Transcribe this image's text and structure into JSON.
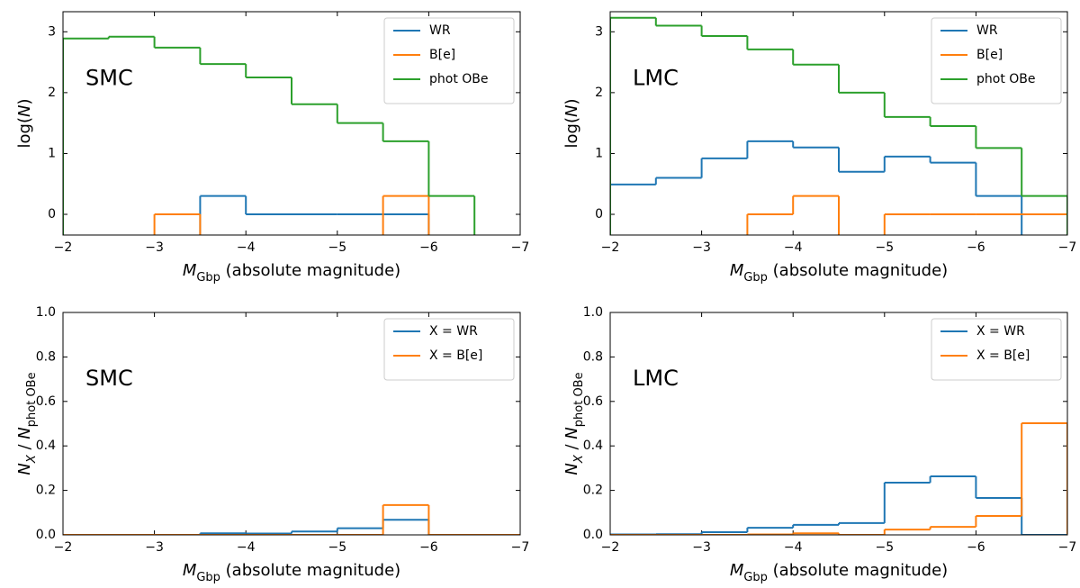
{
  "chart_data": [
    {
      "type": "histogram",
      "annotation": "SMC",
      "xlabel": [
        {
          "text": "M",
          "italic": true
        },
        {
          "text": "Gbp",
          "sub": true
        },
        {
          "text": " (absolute magnitude)"
        }
      ],
      "ylabel": [
        {
          "text": "log("
        },
        {
          "text": "N",
          "italic": true
        },
        {
          "text": ")"
        }
      ],
      "bins": [
        -2,
        -2.5,
        -3,
        -3.5,
        -4,
        -4.5,
        -5,
        -5.5,
        -6,
        -6.5,
        -7
      ],
      "series": [
        {
          "name": "WR",
          "color": "#1f77b4",
          "values": [
            null,
            null,
            null,
            0.301,
            0,
            0,
            0,
            0,
            null,
            null
          ]
        },
        {
          "name": "B[e]",
          "color": "#ff7f0e",
          "values": [
            null,
            null,
            0,
            null,
            null,
            null,
            null,
            0.301,
            null,
            null
          ]
        },
        {
          "name": "phot OBe",
          "color": "#2ca02c",
          "values": [
            2.89,
            2.92,
            2.74,
            2.47,
            2.25,
            1.81,
            1.5,
            1.2,
            0.301,
            null
          ]
        }
      ],
      "xlim": [
        -2,
        -7
      ],
      "ylim": [
        -0.34,
        3.33
      ],
      "xticks": [
        {
          "value": -2,
          "label": "−2"
        },
        {
          "value": -3,
          "label": "−3"
        },
        {
          "value": -4,
          "label": "−4"
        },
        {
          "value": -5,
          "label": "−5"
        },
        {
          "value": -6,
          "label": "−6"
        },
        {
          "value": -7,
          "label": "−7"
        }
      ],
      "yticks": [
        0,
        1,
        2,
        3
      ],
      "legend": "upper right"
    },
    {
      "type": "histogram",
      "annotation": "LMC",
      "xlabel": [
        {
          "text": "M",
          "italic": true
        },
        {
          "text": "Gbp",
          "sub": true
        },
        {
          "text": " (absolute magnitude)"
        }
      ],
      "ylabel": [
        {
          "text": "log("
        },
        {
          "text": "N",
          "italic": true
        },
        {
          "text": ")"
        }
      ],
      "bins": [
        -2,
        -2.5,
        -3,
        -3.5,
        -4,
        -4.5,
        -5,
        -5.5,
        -6,
        -6.5,
        -7
      ],
      "series": [
        {
          "name": "WR",
          "color": "#1f77b4",
          "values": [
            0.49,
            0.6,
            0.92,
            1.2,
            1.1,
            0.7,
            0.95,
            0.85,
            0.301,
            null
          ]
        },
        {
          "name": "B[e]",
          "color": "#ff7f0e",
          "values": [
            null,
            null,
            null,
            0,
            0.301,
            null,
            0,
            0,
            0,
            0
          ]
        },
        {
          "name": "phot OBe",
          "color": "#2ca02c",
          "values": [
            3.23,
            3.1,
            2.93,
            2.71,
            2.46,
            2.0,
            1.6,
            1.45,
            1.09,
            0.301
          ]
        }
      ],
      "xlim": [
        -2,
        -7
      ],
      "ylim": [
        -0.34,
        3.33
      ],
      "xticks": [
        {
          "value": -2,
          "label": "−2"
        },
        {
          "value": -3,
          "label": "−3"
        },
        {
          "value": -4,
          "label": "−4"
        },
        {
          "value": -5,
          "label": "−5"
        },
        {
          "value": -6,
          "label": "−6"
        },
        {
          "value": -7,
          "label": "−7"
        }
      ],
      "yticks": [
        0,
        1,
        2,
        3
      ],
      "legend": "upper right"
    },
    {
      "type": "histogram",
      "annotation": "SMC",
      "xlabel": [
        {
          "text": "M",
          "italic": true
        },
        {
          "text": "Gbp",
          "sub": true
        },
        {
          "text": " (absolute magnitude)"
        }
      ],
      "ylabel": [
        {
          "text": "N",
          "italic": true
        },
        {
          "text": "X",
          "italic": true,
          "sub": true
        },
        {
          "text": " / "
        },
        {
          "text": "N",
          "italic": true
        },
        {
          "text": "phot OBe",
          "sub": true
        }
      ],
      "bins": [
        -2,
        -2.5,
        -3,
        -3.5,
        -4,
        -4.5,
        -5,
        -5.5,
        -6,
        -6.5,
        -7
      ],
      "series": [
        {
          "name": "X = WR",
          "color": "#1f77b4",
          "values": [
            0,
            0,
            0,
            0.007,
            0.006,
            0.015,
            0.03,
            0.068,
            0,
            0
          ]
        },
        {
          "name": "X = B[e]",
          "color": "#ff7f0e",
          "values": [
            0,
            0,
            0,
            0,
            0,
            0,
            0,
            0.134,
            0,
            0
          ]
        }
      ],
      "xlim": [
        -2,
        -7
      ],
      "ylim": [
        0,
        1
      ],
      "xticks": [
        {
          "value": -2,
          "label": "−2"
        },
        {
          "value": -3,
          "label": "−3"
        },
        {
          "value": -4,
          "label": "−4"
        },
        {
          "value": -5,
          "label": "−5"
        },
        {
          "value": -6,
          "label": "−6"
        },
        {
          "value": -7,
          "label": "−7"
        }
      ],
      "yticks": [
        {
          "value": 0,
          "label": "0.0"
        },
        {
          "value": 0.2,
          "label": "0.2"
        },
        {
          "value": 0.4,
          "label": "0.4"
        },
        {
          "value": 0.6,
          "label": "0.6"
        },
        {
          "value": 0.8,
          "label": "0.8"
        },
        {
          "value": 1,
          "label": "1.0"
        }
      ],
      "legend": "upper right"
    },
    {
      "type": "histogram",
      "annotation": "LMC",
      "xlabel": [
        {
          "text": "M",
          "italic": true
        },
        {
          "text": "Gbp",
          "sub": true
        },
        {
          "text": " (absolute magnitude)"
        }
      ],
      "ylabel": [
        {
          "text": "N",
          "italic": true
        },
        {
          "text": "X",
          "italic": true,
          "sub": true
        },
        {
          "text": " / "
        },
        {
          "text": "N",
          "italic": true
        },
        {
          "text": "phot OBe",
          "sub": true
        }
      ],
      "bins": [
        -2,
        -2.5,
        -3,
        -3.5,
        -4,
        -4.5,
        -5,
        -5.5,
        -6,
        -6.5,
        -7
      ],
      "series": [
        {
          "name": "X = WR",
          "color": "#1f77b4",
          "values": [
            0.002,
            0.003,
            0.012,
            0.032,
            0.045,
            0.053,
            0.235,
            0.263,
            0.166,
            0
          ]
        },
        {
          "name": "X = B[e]",
          "color": "#ff7f0e",
          "values": [
            0,
            0,
            0,
            0.002,
            0.007,
            0,
            0.024,
            0.036,
            0.085,
            0.502
          ]
        }
      ],
      "xlim": [
        -2,
        -7
      ],
      "ylim": [
        0,
        1
      ],
      "xticks": [
        {
          "value": -2,
          "label": "−2"
        },
        {
          "value": -3,
          "label": "−3"
        },
        {
          "value": -4,
          "label": "−4"
        },
        {
          "value": -5,
          "label": "−5"
        },
        {
          "value": -6,
          "label": "−6"
        },
        {
          "value": -7,
          "label": "−7"
        }
      ],
      "yticks": [
        {
          "value": 0,
          "label": "0.0"
        },
        {
          "value": 0.2,
          "label": "0.2"
        },
        {
          "value": 0.4,
          "label": "0.4"
        },
        {
          "value": 0.6,
          "label": "0.6"
        },
        {
          "value": 0.8,
          "label": "0.8"
        },
        {
          "value": 1,
          "label": "1.0"
        }
      ],
      "legend": "upper right"
    }
  ]
}
